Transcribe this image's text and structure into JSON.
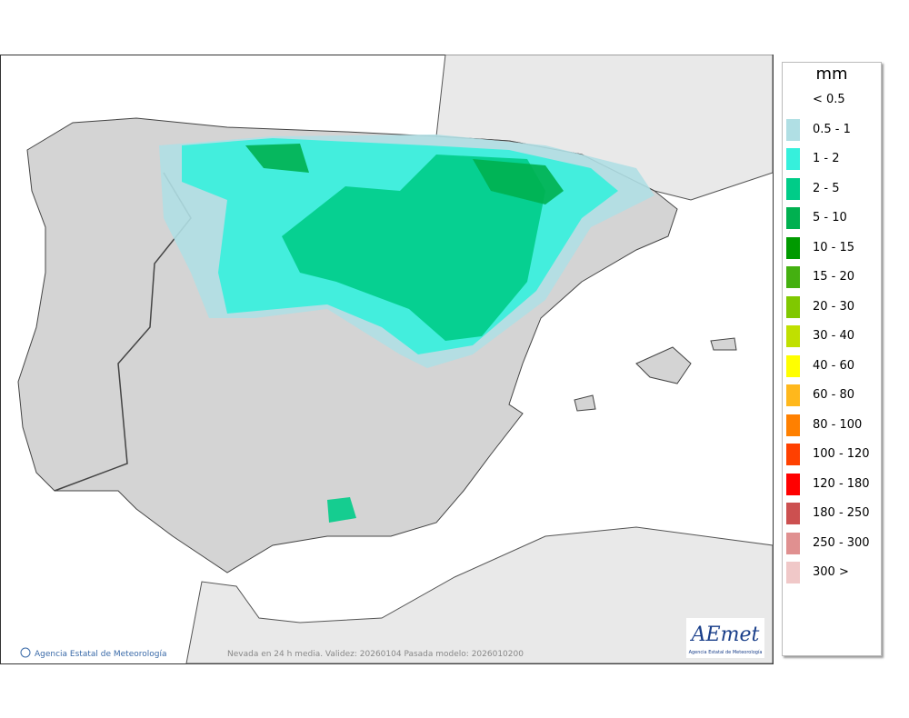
{
  "map": {
    "copyright": "Agencia Estatal de Meteorología",
    "note": "Nevada en 24 h media. Validez: 20260104 Pasada modelo: 2026010200",
    "logo": {
      "name": "AEmet",
      "subtitle": "Agencia Estatal de Meteorología"
    }
  },
  "legend": {
    "title": "mm",
    "items": [
      {
        "label": "< 0.5"
      },
      {
        "label": "0.5 - 1",
        "color": "#b0dfe4"
      },
      {
        "label": "1 - 2",
        "color": "#36f0dc"
      },
      {
        "label": "2 - 5",
        "color": "#00cc88"
      },
      {
        "label": "5 - 10",
        "color": "#00b050"
      },
      {
        "label": "10 - 15",
        "color": "#009a00"
      },
      {
        "label": "15 - 20",
        "color": "#44b010"
      },
      {
        "label": "20 - 30",
        "color": "#80c800"
      },
      {
        "label": "30 - 40",
        "color": "#c0e000"
      },
      {
        "label": "40 - 60",
        "color": "#ffff00"
      },
      {
        "label": "60 - 80",
        "color": "#ffb81c"
      },
      {
        "label": "80 - 100",
        "color": "#ff8000"
      },
      {
        "label": "100 - 120",
        "color": "#ff4000"
      },
      {
        "label": "120 - 180",
        "color": "#ff0000"
      },
      {
        "label": "180 - 250",
        "color": "#cc5050"
      },
      {
        "label": "250 - 300",
        "color": "#e09090"
      },
      {
        "label": "300 >",
        "color": "#f0c8c8"
      }
    ]
  }
}
